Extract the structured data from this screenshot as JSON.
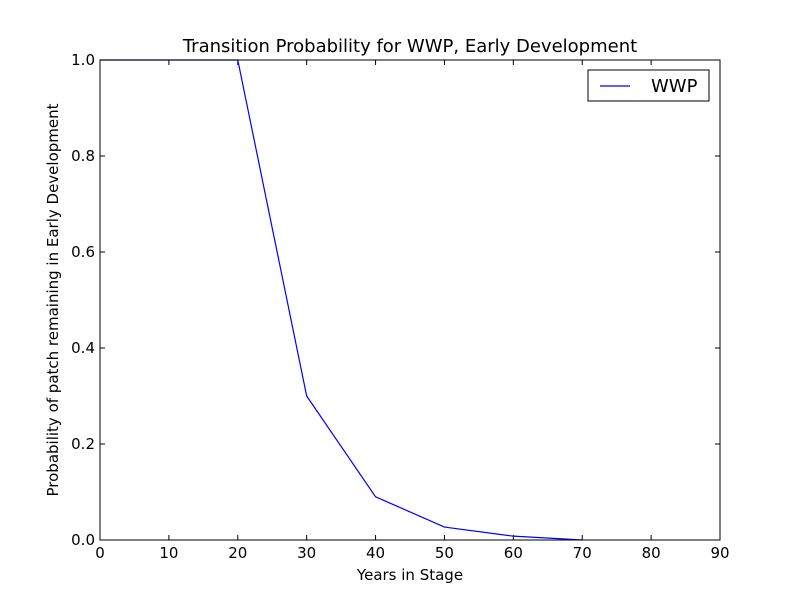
{
  "chart_data": {
    "type": "line",
    "title": "Transition Probability for WWP, Early Development",
    "xlabel": "Years in Stage",
    "ylabel": "Probability of patch remaining in Early Development",
    "xlim": [
      0,
      90
    ],
    "ylim": [
      0.0,
      1.0
    ],
    "xticks": [
      "0",
      "10",
      "20",
      "30",
      "40",
      "50",
      "60",
      "70",
      "80",
      "90"
    ],
    "xtick_values": [
      0,
      10,
      20,
      30,
      40,
      50,
      60,
      70,
      80,
      90
    ],
    "yticks": [
      "0.0",
      "0.2",
      "0.4",
      "0.6",
      "0.8",
      "1.0"
    ],
    "ytick_values": [
      0.0,
      0.2,
      0.4,
      0.6,
      0.8,
      1.0
    ],
    "grid": false,
    "legend_position": "top-right",
    "series": [
      {
        "name": "WWP",
        "color": "#0000ff",
        "x": [
          0,
          10,
          20,
          30,
          40,
          50,
          60,
          70
        ],
        "y": [
          1.0,
          1.0,
          1.0,
          0.3,
          0.09,
          0.027,
          0.008,
          0.0
        ]
      }
    ]
  }
}
